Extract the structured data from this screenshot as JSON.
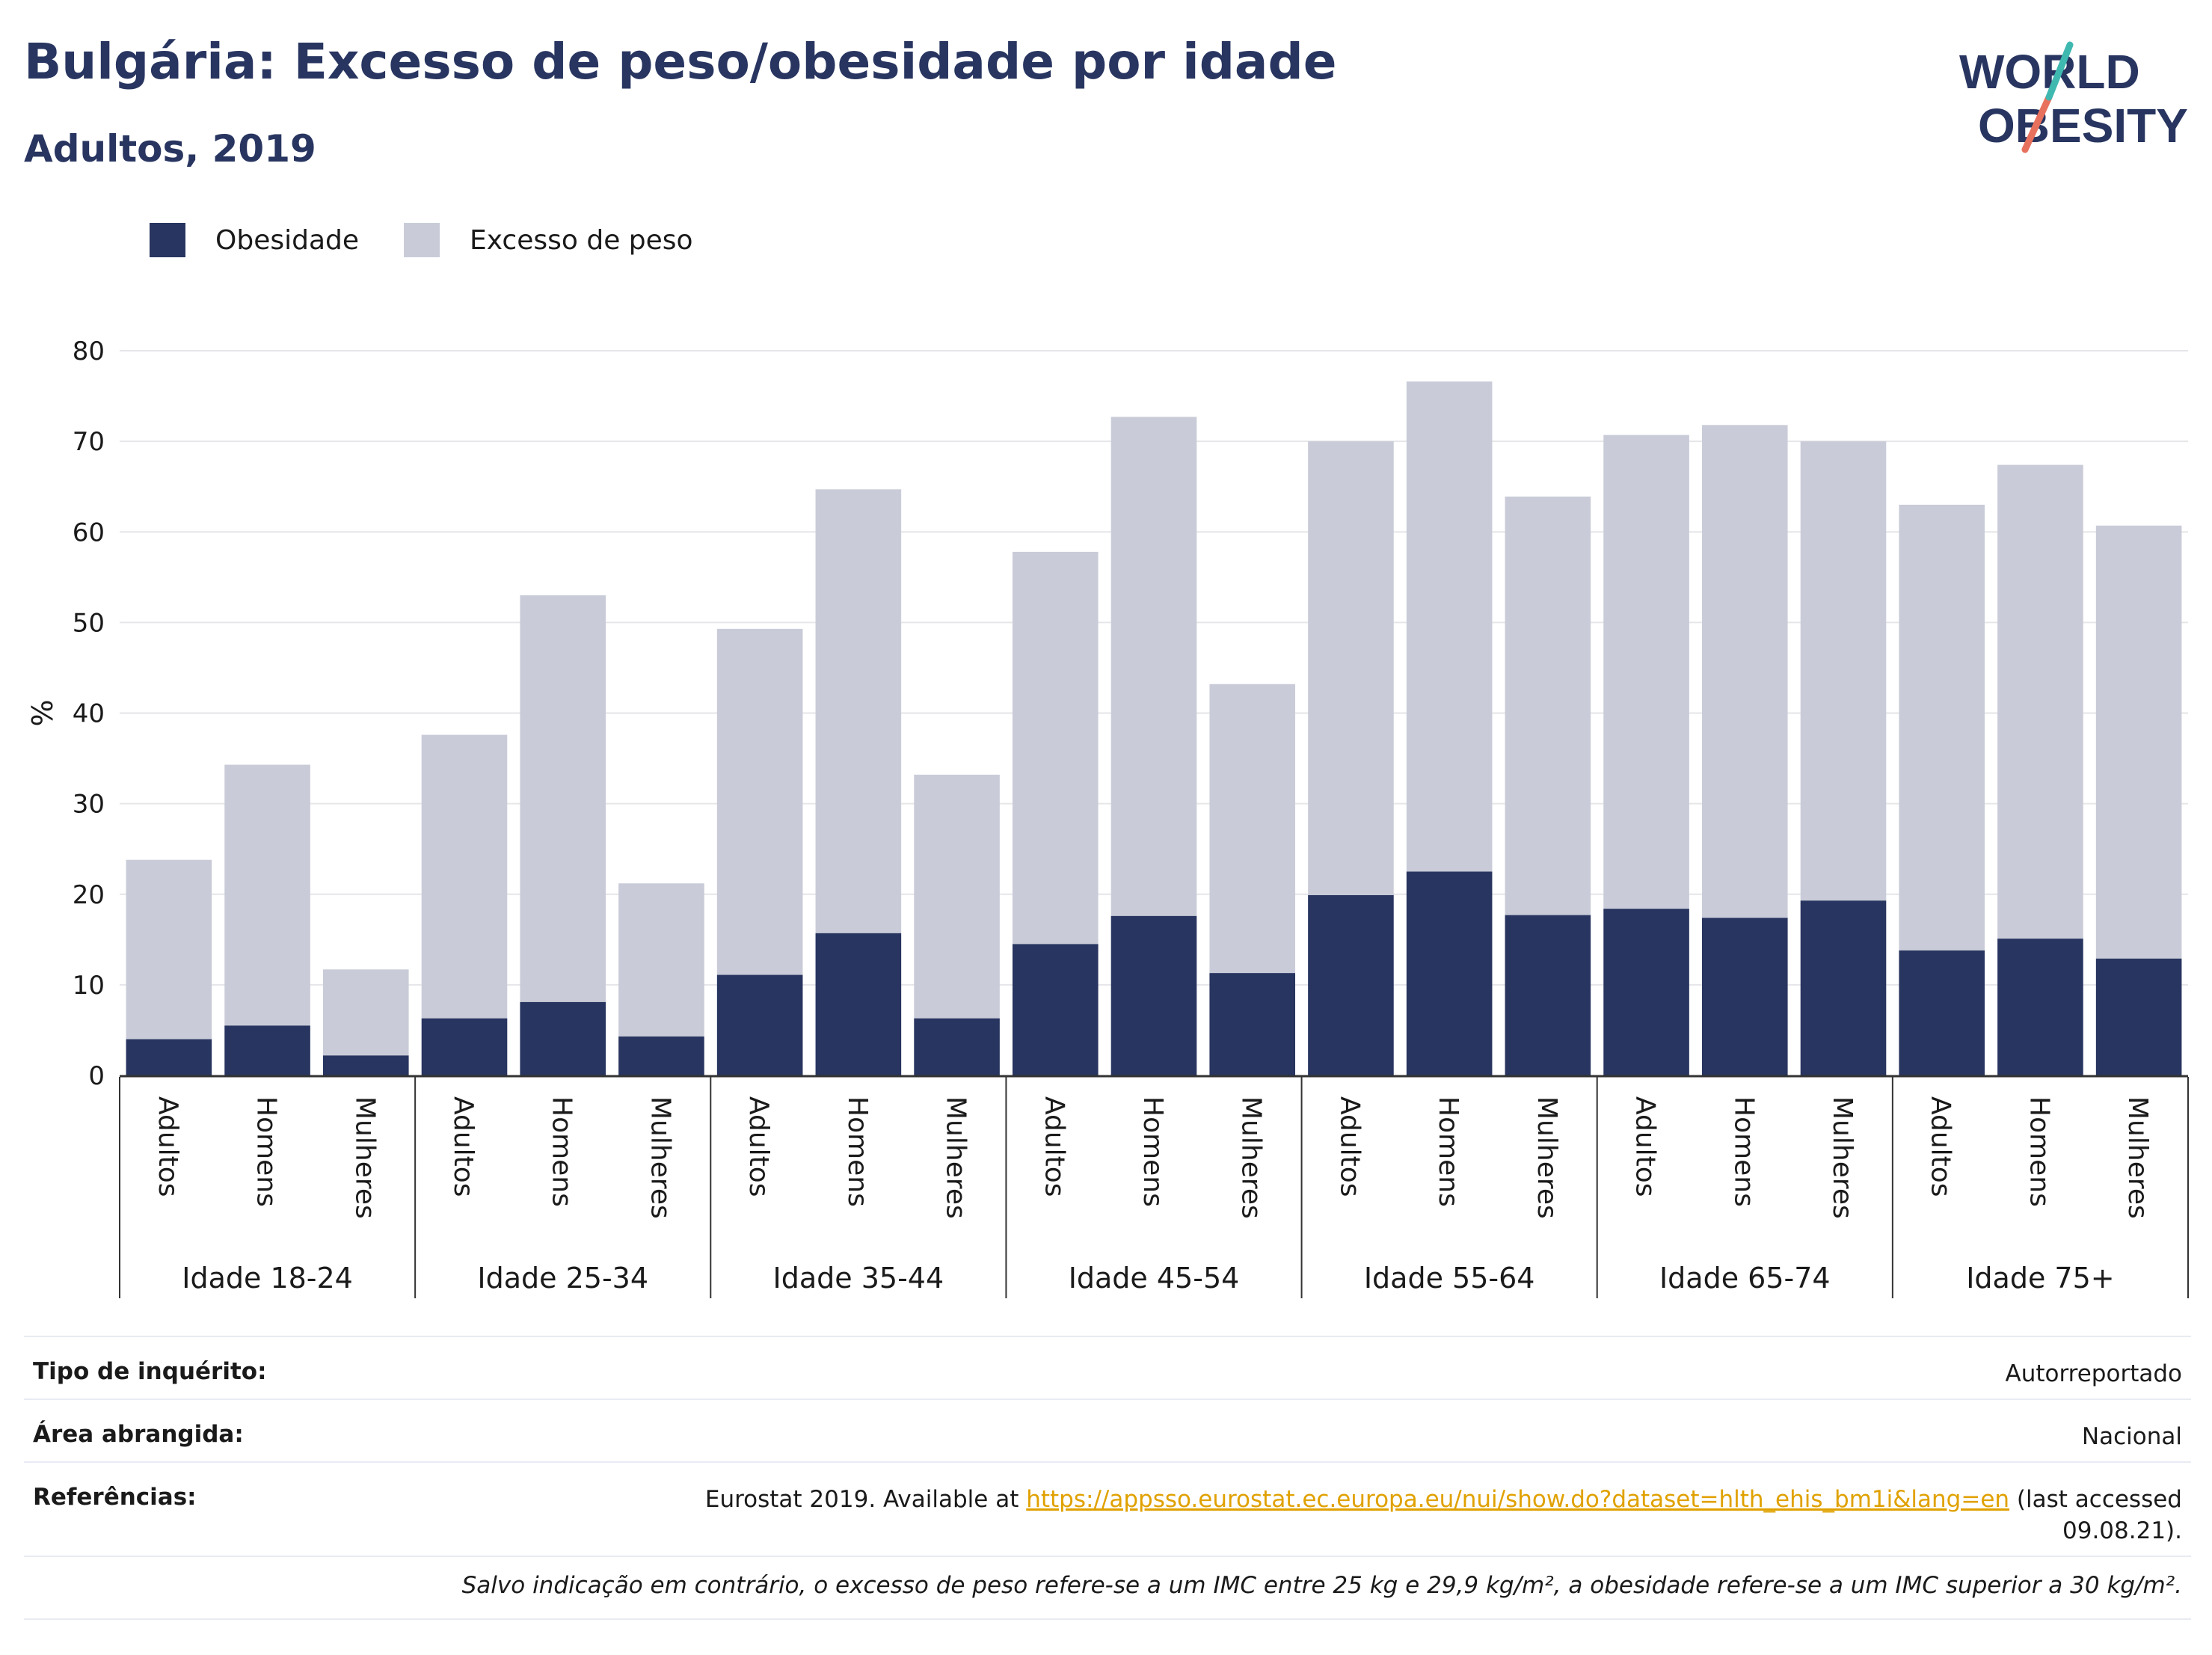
{
  "title": "Bulgária: Excesso de peso/obesidade por idade",
  "subtitle": "Adultos, 2019",
  "logo": {
    "line1": "WORLD",
    "line2": "OBESITY"
  },
  "legend": [
    {
      "label": "Obesidade",
      "color": "#283560"
    },
    {
      "label": "Excesso de peso",
      "color": "#c9ccd8"
    }
  ],
  "chart_data": {
    "type": "bar",
    "stacked": true,
    "ylabel": "%",
    "ylim": [
      0,
      80
    ],
    "yticks": [
      0,
      10,
      20,
      30,
      40,
      50,
      60,
      70,
      80
    ],
    "grid": true,
    "groups": [
      "Idade 18-24",
      "Idade 25-34",
      "Idade 35-44",
      "Idade 45-54",
      "Idade 55-64",
      "Idade 65-74",
      "Idade 75+"
    ],
    "subcategories": [
      "Adultos",
      "Homens",
      "Mulheres"
    ],
    "series": [
      {
        "name": "Obesidade",
        "color": "#283560",
        "values": [
          4.0,
          5.5,
          2.2,
          6.3,
          8.1,
          4.3,
          11.1,
          15.7,
          6.3,
          14.5,
          17.6,
          11.3,
          19.9,
          22.5,
          17.7,
          18.4,
          17.4,
          19.3,
          13.8,
          15.1,
          12.9
        ]
      },
      {
        "name": "Excesso de peso",
        "color": "#c9ccd8",
        "values": [
          19.8,
          28.8,
          9.5,
          31.3,
          44.9,
          16.9,
          38.2,
          49.0,
          26.9,
          43.3,
          55.1,
          31.9,
          50.1,
          54.1,
          46.2,
          52.3,
          54.4,
          50.7,
          49.2,
          52.3,
          47.8
        ]
      }
    ]
  },
  "info": {
    "survey_label": "Tipo de inquérito:",
    "survey_value": "Autorreportado",
    "area_label": "Área abrangida:",
    "area_value": "Nacional",
    "ref_label": "Referências:",
    "ref_prefix": "Eurostat 2019. Available at ",
    "ref_link": "https://appsso.eurostat.ec.europa.eu/nui/show.do?dataset=hlth_ehis_bm1i&lang=en",
    "ref_suffix": " (last accessed",
    "ref_date": "09.08.21).",
    "note": "Salvo indicação em contrário, o excesso de peso refere-se a um IMC entre 25 kg e 29,9 kg/m², a obesidade refere-se a um IMC superior a 30 kg/m²."
  }
}
